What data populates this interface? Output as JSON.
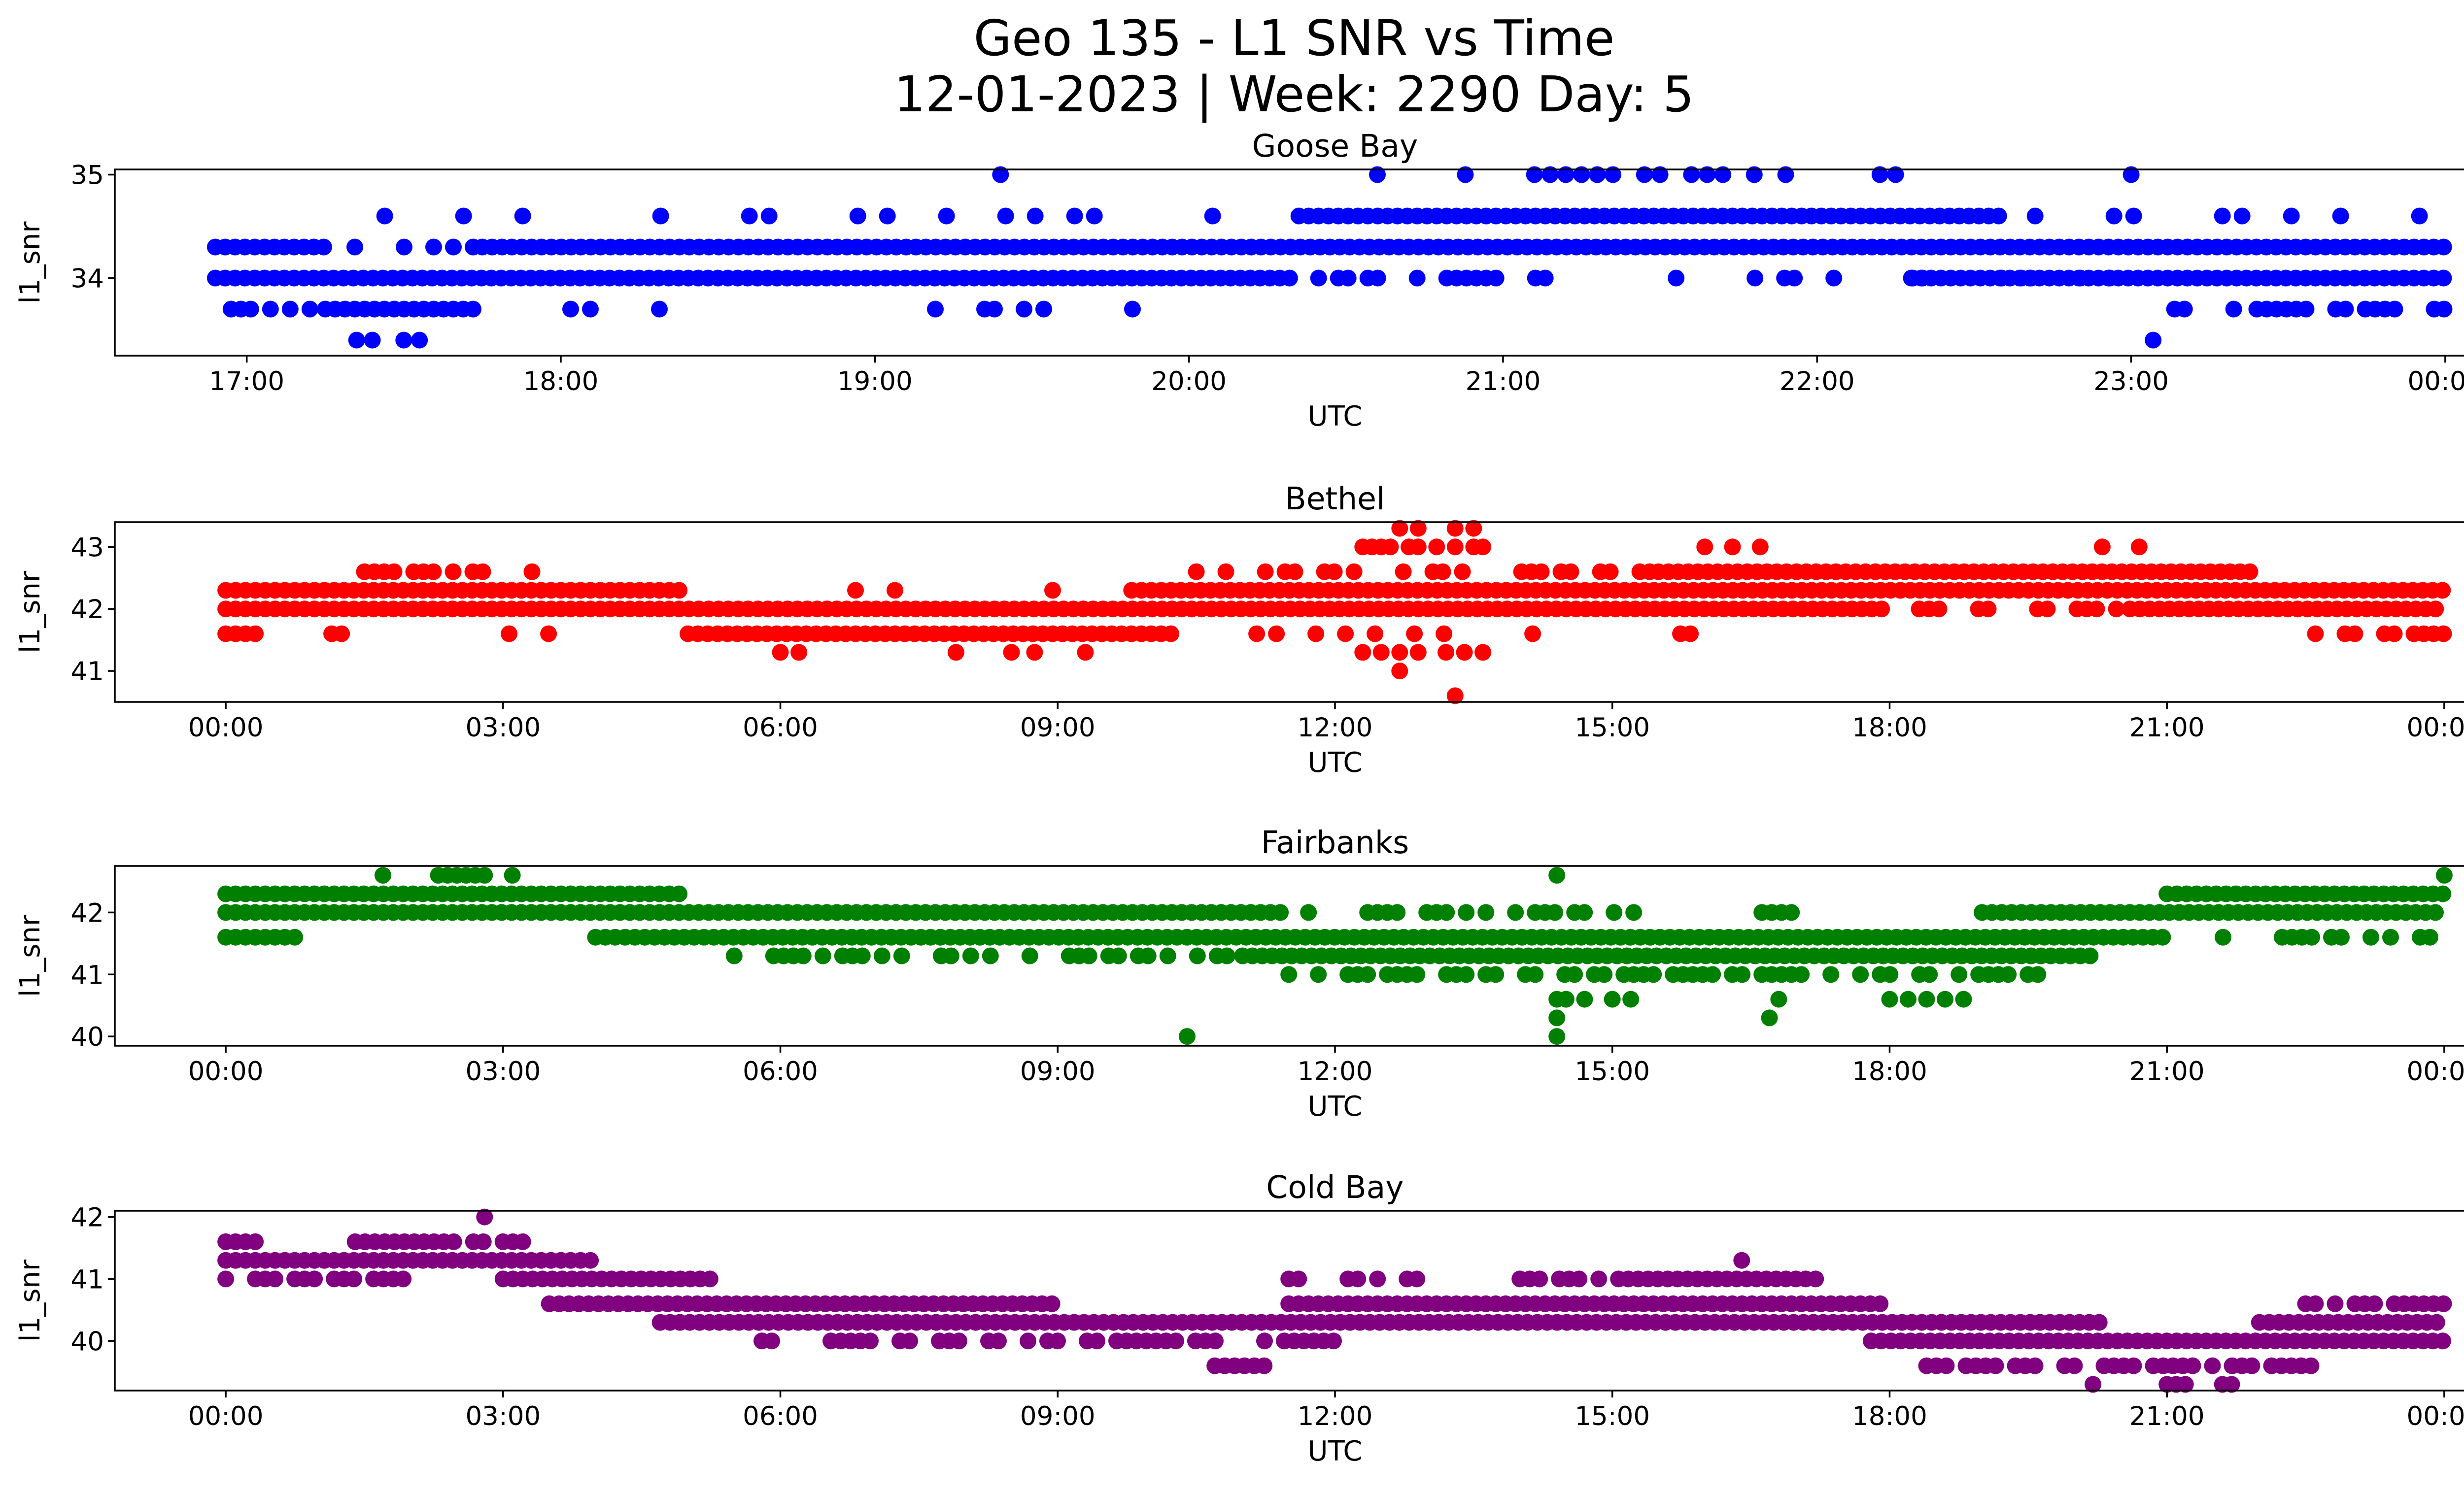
{
  "figure": {
    "title_line1": "Geo 135 - L1 SNR vs Time",
    "title_line2": "12-01-2023 | Week: 2290 Day: 5"
  },
  "chart_data": [
    {
      "type": "scatter",
      "title": "Goose Bay",
      "xlabel": "UTC",
      "ylabel": "l1_snr",
      "color": "#0000ff",
      "x_unit": "hours_utc",
      "xlim": [
        16.58,
        24.35
      ],
      "ylim": [
        33.25,
        35.05
      ],
      "x_ticks": [
        17,
        18,
        19,
        20,
        21,
        22,
        23,
        24
      ],
      "x_tick_labels": [
        "17:00",
        "18:00",
        "19:00",
        "20:00",
        "21:00",
        "22:00",
        "23:00",
        "00:00"
      ],
      "y_ticks": [
        34,
        35
      ],
      "y_tick_labels": [
        "34",
        "35"
      ],
      "series": [
        {
          "values": [
            {
              "y": 34.3,
              "x_start": 16.9,
              "x_end": 17.25,
              "density": 1.0
            },
            {
              "y": 34.3,
              "x_start": 17.25,
              "x_end": 17.75,
              "density": 0.3
            },
            {
              "y": 34.3,
              "x_start": 17.75,
              "x_end": 24.0,
              "density": 1.0
            },
            {
              "y": 34.0,
              "x_start": 16.9,
              "x_end": 20.35,
              "density": 1.0
            },
            {
              "y": 34.0,
              "x_start": 20.35,
              "x_end": 21.3,
              "density": 0.5
            },
            {
              "y": 34.0,
              "x_start": 21.3,
              "x_end": 23.05,
              "density": 0.3
            },
            {
              "y": 34.0,
              "x_start": 22.3,
              "x_end": 24.0,
              "density": 1.0
            },
            {
              "y": 34.6,
              "x_start": 20.35,
              "x_end": 22.6,
              "density": 1.0
            },
            {
              "y": 34.6,
              "x_start": 17.0,
              "x_end": 20.35,
              "density": 0.12
            },
            {
              "y": 34.6,
              "x_start": 22.6,
              "x_end": 24.0,
              "density": 0.25
            },
            {
              "y": 33.7,
              "x_start": 16.95,
              "x_end": 17.25,
              "density": 0.7
            },
            {
              "y": 33.7,
              "x_start": 17.25,
              "x_end": 17.75,
              "density": 1.0
            },
            {
              "y": 33.7,
              "x_start": 18.0,
              "x_end": 20.0,
              "density": 0.1
            },
            {
              "y": 33.7,
              "x_start": 22.95,
              "x_end": 23.4,
              "density": 0.15
            },
            {
              "y": 33.7,
              "x_start": 23.4,
              "x_end": 24.0,
              "density": 0.75
            },
            {
              "y": 35.0,
              "points": [
                19.4,
                20.6,
                20.88,
                21.1,
                21.15,
                21.2,
                21.25,
                21.3,
                21.35,
                21.45,
                21.5,
                21.6,
                21.65,
                21.7,
                21.8,
                21.9,
                22.2,
                22.25,
                23.0
              ]
            },
            {
              "y": 33.4,
              "points": [
                17.35,
                17.4,
                17.5,
                17.55,
                23.07
              ]
            }
          ]
        }
      ]
    },
    {
      "type": "scatter",
      "title": "Bethel",
      "xlabel": "UTC",
      "ylabel": "l1_snr",
      "color": "#ff0000",
      "x_unit": "hours_utc",
      "xlim": [
        -1.2,
        25.2
      ],
      "ylim": [
        40.5,
        43.4
      ],
      "x_ticks": [
        0,
        3,
        6,
        9,
        12,
        15,
        18,
        21,
        24
      ],
      "x_tick_labels": [
        "00:00",
        "03:00",
        "06:00",
        "09:00",
        "12:00",
        "15:00",
        "18:00",
        "21:00",
        "00:00"
      ],
      "y_ticks": [
        41,
        42,
        43
      ],
      "y_tick_labels": [
        "41",
        "42",
        "43"
      ],
      "series": [
        {
          "values": [
            {
              "y": 42.0,
              "x_start": 0.0,
              "x_end": 18.0,
              "density": 1.0
            },
            {
              "y": 42.0,
              "x_start": 18.0,
              "x_end": 20.6,
              "density": 0.5
            },
            {
              "y": 42.0,
              "x_start": 20.6,
              "x_end": 24.0,
              "density": 1.0
            },
            {
              "y": 42.3,
              "x_start": 0.0,
              "x_end": 5.0,
              "density": 1.0
            },
            {
              "y": 42.3,
              "x_start": 5.0,
              "x_end": 9.8,
              "density": 0.1
            },
            {
              "y": 42.3,
              "x_start": 9.8,
              "x_end": 24.0,
              "density": 1.0
            },
            {
              "y": 41.6,
              "x_start": 0.0,
              "x_end": 0.4,
              "density": 1.0
            },
            {
              "y": 41.6,
              "x_start": 0.4,
              "x_end": 5.0,
              "density": 0.2
            },
            {
              "y": 41.6,
              "x_start": 5.0,
              "x_end": 10.3,
              "density": 1.0
            },
            {
              "y": 41.6,
              "x_start": 10.3,
              "x_end": 16.0,
              "density": 0.3
            },
            {
              "y": 41.6,
              "x_start": 22.5,
              "x_end": 24.0,
              "density": 0.6
            },
            {
              "y": 42.6,
              "x_start": 1.5,
              "x_end": 3.5,
              "density": 0.5
            },
            {
              "y": 42.6,
              "x_start": 10.5,
              "x_end": 15.5,
              "density": 0.5
            },
            {
              "y": 42.6,
              "x_start": 15.5,
              "x_end": 22.0,
              "density": 1.0
            },
            {
              "y": 43.0,
              "points": [
                12.3,
                12.4,
                12.5,
                12.6,
                12.8,
                12.9,
                13.1,
                13.3,
                13.5,
                13.6,
                16.0,
                16.3,
                16.6,
                20.3,
                20.7
              ]
            },
            {
              "y": 43.3,
              "points": [
                12.7,
                12.9,
                13.3,
                13.5
              ]
            },
            {
              "y": 41.3,
              "points": [
                6.0,
                6.2,
                7.9,
                8.5,
                8.75,
                9.3,
                12.3,
                12.5,
                12.7,
                12.9,
                13.2,
                13.4,
                13.6
              ]
            },
            {
              "y": 41.0,
              "points": [
                12.7
              ]
            },
            {
              "y": 40.6,
              "points": [
                13.3
              ]
            }
          ]
        }
      ]
    },
    {
      "type": "scatter",
      "title": "Fairbanks",
      "xlabel": "UTC",
      "ylabel": "l1_snr",
      "color": "#008000",
      "x_unit": "hours_utc",
      "xlim": [
        -1.2,
        25.2
      ],
      "ylim": [
        39.85,
        42.75
      ],
      "x_ticks": [
        0,
        3,
        6,
        9,
        12,
        15,
        18,
        21,
        24
      ],
      "x_tick_labels": [
        "00:00",
        "03:00",
        "06:00",
        "09:00",
        "12:00",
        "15:00",
        "18:00",
        "21:00",
        "00:00"
      ],
      "y_ticks": [
        40,
        41,
        42
      ],
      "y_tick_labels": [
        "40",
        "41",
        "42"
      ],
      "series": [
        {
          "values": [
            {
              "y": 42.0,
              "x_start": 0.0,
              "x_end": 11.5,
              "density": 1.0
            },
            {
              "y": 42.0,
              "x_start": 11.5,
              "x_end": 17.0,
              "density": 0.5
            },
            {
              "y": 42.0,
              "x_start": 19.0,
              "x_end": 24.0,
              "density": 1.0
            },
            {
              "y": 42.3,
              "x_start": 0.0,
              "x_end": 5.0,
              "density": 1.0
            },
            {
              "y": 42.3,
              "x_start": 21.0,
              "x_end": 24.0,
              "density": 1.0
            },
            {
              "y": 41.6,
              "x_start": 0.0,
              "x_end": 0.8,
              "density": 1.0
            },
            {
              "y": 41.6,
              "x_start": 4.0,
              "x_end": 21.0,
              "density": 1.0
            },
            {
              "y": 41.6,
              "x_start": 21.5,
              "x_end": 24.0,
              "density": 0.5
            },
            {
              "y": 41.3,
              "x_start": 5.5,
              "x_end": 11.0,
              "density": 0.5
            },
            {
              "y": 41.3,
              "x_start": 11.0,
              "x_end": 20.2,
              "density": 1.0
            },
            {
              "y": 41.0,
              "x_start": 11.5,
              "x_end": 19.8,
              "density": 0.6
            },
            {
              "y": 42.6,
              "points": [
                1.7,
                2.3,
                2.4,
                2.5,
                2.6,
                2.7,
                2.8,
                3.1,
                14.4,
                24.0
              ]
            },
            {
              "y": 40.6,
              "points": [
                14.4,
                14.5,
                14.7,
                15.0,
                15.2,
                16.8,
                18.0,
                18.2,
                18.4,
                18.6,
                18.8
              ]
            },
            {
              "y": 40.3,
              "points": [
                14.4,
                16.7
              ]
            },
            {
              "y": 40.0,
              "points": [
                10.4,
                14.4
              ]
            }
          ]
        }
      ]
    },
    {
      "type": "scatter",
      "title": "Cold Bay",
      "xlabel": "UTC",
      "ylabel": "l1_snr",
      "color": "#800080",
      "x_unit": "hours_utc",
      "xlim": [
        -1.2,
        25.2
      ],
      "ylim": [
        39.2,
        42.1
      ],
      "x_ticks": [
        0,
        3,
        6,
        9,
        12,
        15,
        18,
        21,
        24
      ],
      "x_tick_labels": [
        "00:00",
        "03:00",
        "06:00",
        "09:00",
        "12:00",
        "15:00",
        "18:00",
        "21:00",
        "00:00"
      ],
      "y_ticks": [
        40,
        41,
        42
      ],
      "y_tick_labels": [
        "40",
        "41",
        "42"
      ],
      "series": [
        {
          "values": [
            {
              "y": 41.6,
              "x_start": 0.0,
              "x_end": 0.4,
              "density": 1.0
            },
            {
              "y": 41.6,
              "x_start": 1.4,
              "x_end": 3.3,
              "density": 0.9
            },
            {
              "y": 41.3,
              "x_start": 0.0,
              "x_end": 4.0,
              "density": 1.0
            },
            {
              "y": 41.0,
              "x_start": 0.0,
              "x_end": 2.0,
              "density": 0.8
            },
            {
              "y": 41.0,
              "x_start": 3.0,
              "x_end": 5.3,
              "density": 1.0
            },
            {
              "y": 41.0,
              "x_start": 11.5,
              "x_end": 13.0,
              "density": 0.4
            },
            {
              "y": 41.0,
              "x_start": 14.0,
              "x_end": 17.2,
              "density": 0.9
            },
            {
              "y": 40.6,
              "x_start": 3.5,
              "x_end": 9.0,
              "density": 1.0
            },
            {
              "y": 40.6,
              "x_start": 11.5,
              "x_end": 18.0,
              "density": 1.0
            },
            {
              "y": 40.6,
              "x_start": 22.5,
              "x_end": 24.0,
              "density": 0.8
            },
            {
              "y": 40.3,
              "x_start": 4.7,
              "x_end": 20.3,
              "density": 1.0
            },
            {
              "y": 40.3,
              "x_start": 22.0,
              "x_end": 24.0,
              "density": 1.0
            },
            {
              "y": 40.0,
              "x_start": 5.8,
              "x_end": 12.0,
              "density": 0.6
            },
            {
              "y": 40.0,
              "x_start": 17.8,
              "x_end": 24.0,
              "density": 1.0
            },
            {
              "y": 39.6,
              "x_start": 10.7,
              "x_end": 11.3,
              "density": 0.8
            },
            {
              "y": 39.6,
              "x_start": 18.4,
              "x_end": 22.6,
              "density": 0.9
            },
            {
              "y": 42.0,
              "points": [
                2.8
              ]
            },
            {
              "y": 41.3,
              "points": [
                16.4
              ]
            },
            {
              "y": 39.3,
              "points": [
                20.2,
                21.0,
                21.1,
                21.2,
                21.6,
                21.7
              ]
            }
          ]
        }
      ]
    }
  ]
}
